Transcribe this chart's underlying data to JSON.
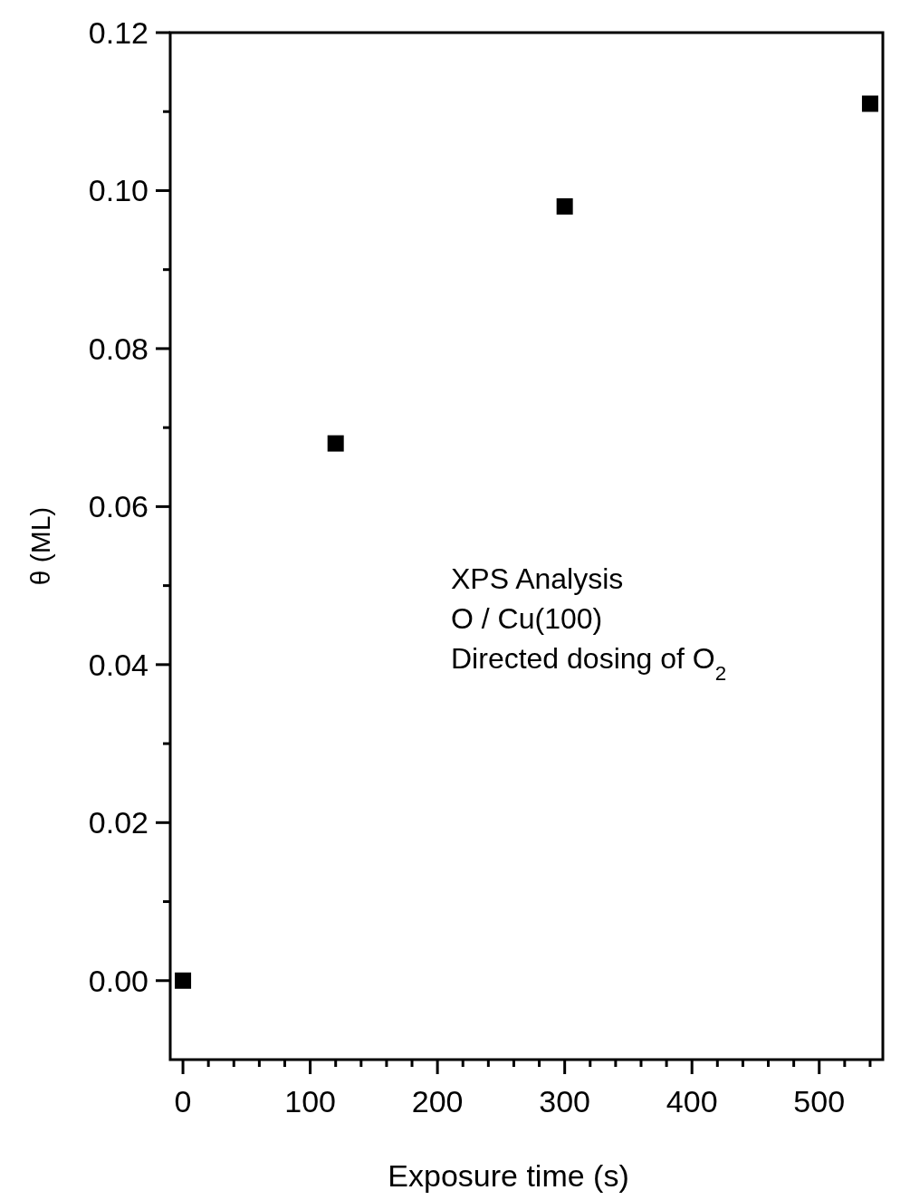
{
  "chart_data": {
    "type": "scatter",
    "xlabel": "Exposure time (s)",
    "ylabel": "θ (ML)",
    "x": [
      0,
      120,
      300,
      540
    ],
    "values": [
      0,
      0.068,
      0.098,
      0.111
    ],
    "color": "#000000",
    "marker": "square",
    "xlim": [
      -10,
      550
    ],
    "xticks": [
      0,
      {
        "value": 20,
        "label": null
      },
      {
        "value": 40,
        "label": null
      },
      {
        "value": 60,
        "label": null
      },
      {
        "value": 80,
        "label": null
      },
      100,
      {
        "value": 120,
        "label": null
      },
      {
        "value": 140,
        "label": null
      },
      {
        "value": 160,
        "label": null
      },
      {
        "value": 180,
        "label": null
      },
      200,
      {
        "value": 220,
        "label": null
      },
      {
        "value": 240,
        "label": null
      },
      {
        "value": 260,
        "label": null
      },
      {
        "value": 280,
        "label": null
      },
      300,
      {
        "value": 320,
        "label": null
      },
      {
        "value": 340,
        "label": null
      },
      {
        "value": 360,
        "label": null
      },
      {
        "value": 380,
        "label": null
      },
      400,
      {
        "value": 420,
        "label": null
      },
      {
        "value": 440,
        "label": null
      },
      {
        "value": 460,
        "label": null
      },
      {
        "value": 480,
        "label": null
      },
      500,
      {
        "value": 520,
        "label": null
      },
      {
        "value": 540,
        "label": null
      }
    ],
    "ylim": [
      -0.01,
      0.12
    ],
    "yticks": [
      {
        "value": 0,
        "label": "0.00"
      },
      {
        "value": 0.01,
        "label": null
      },
      {
        "value": 0.02,
        "label": "0.02"
      },
      {
        "value": 0.03,
        "label": null
      },
      {
        "value": 0.04,
        "label": "0.04"
      },
      {
        "value": 0.05,
        "label": null
      },
      {
        "value": 0.06,
        "label": "0.06"
      },
      {
        "value": 0.07,
        "label": null
      },
      {
        "value": 0.08,
        "label": "0.08"
      },
      {
        "value": 0.09,
        "label": null
      },
      {
        "value": 0.1,
        "label": "0.10"
      },
      {
        "value": 0.11,
        "label": null
      },
      {
        "value": 0.12,
        "label": "0.12"
      }
    ],
    "annotations": [
      "XPS Analysis",
      "O / Cu(100)",
      "Directed dosing of O$_{2}$"
    ],
    "grid": false
  }
}
